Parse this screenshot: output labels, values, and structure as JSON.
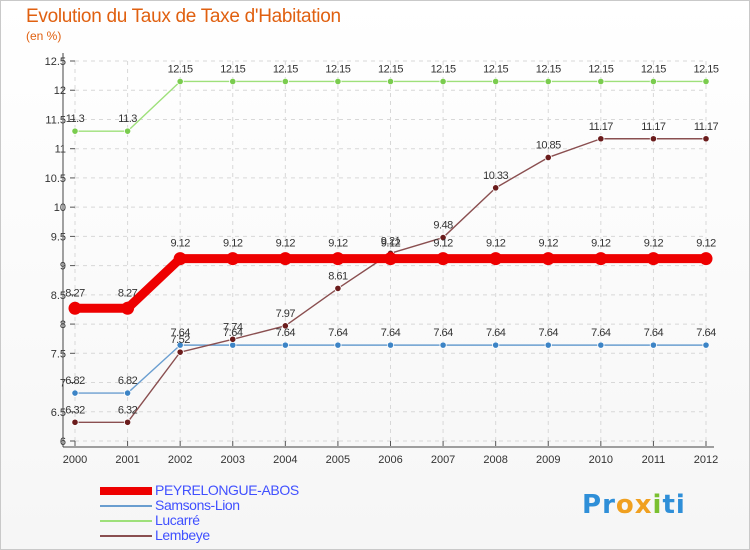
{
  "header": {
    "title": "Evolution du Taux de Taxe d'Habitation",
    "subtitle": "(en %)"
  },
  "chart_data": {
    "type": "line",
    "x": [
      "2000",
      "2001",
      "2002",
      "2003",
      "2004",
      "2005",
      "2006",
      "2007",
      "2008",
      "2009",
      "2010",
      "2011",
      "2012"
    ],
    "ylim": [
      6,
      12.5
    ],
    "yticks": [
      "6",
      "6.5",
      "7",
      "7.5",
      "8",
      "8.5",
      "9",
      "9.5",
      "10",
      "10.5",
      "11",
      "11.5",
      "12",
      "12.5"
    ],
    "ytick_values": [
      6,
      6.5,
      7,
      7.5,
      8,
      8.5,
      9,
      9.5,
      10,
      10.5,
      11,
      11.5,
      12,
      12.5
    ],
    "grid": true,
    "series": [
      {
        "name": "PEYRELONGUE-ABOS",
        "color": "#ee0000",
        "point_color": "#ee0000",
        "emphasis": true,
        "values": [
          8.27,
          8.27,
          9.12,
          9.12,
          9.12,
          9.12,
          9.12,
          9.12,
          9.12,
          9.12,
          9.12,
          9.12,
          9.12
        ],
        "labels": [
          "8.27",
          "8.27",
          "9.12",
          "9.12",
          "9.12",
          "9.12",
          "9.12",
          "9.12",
          "9.12",
          "9.12",
          "9.12",
          "9.12",
          "9.12"
        ]
      },
      {
        "name": "Samsons-Lion",
        "color": "#6a9ed0",
        "point_color": "#3c84c6",
        "emphasis": false,
        "values": [
          6.82,
          6.82,
          7.64,
          7.64,
          7.64,
          7.64,
          7.64,
          7.64,
          7.64,
          7.64,
          7.64,
          7.64,
          7.64
        ],
        "labels": [
          "6.82",
          "6.82",
          "7.64",
          "7.64",
          "7.64",
          "7.64",
          "7.64",
          "7.64",
          "7.64",
          "7.64",
          "7.64",
          "7.64",
          "7.64"
        ]
      },
      {
        "name": "Lucarré",
        "color": "#9ee07a",
        "point_color": "#7acc4e",
        "emphasis": false,
        "values": [
          11.3,
          11.3,
          12.15,
          12.15,
          12.15,
          12.15,
          12.15,
          12.15,
          12.15,
          12.15,
          12.15,
          12.15,
          12.15
        ],
        "labels": [
          "11.3",
          "11.3",
          "12.15",
          "12.15",
          "12.15",
          "12.15",
          "12.15",
          "12.15",
          "12.15",
          "12.15",
          "12.15",
          "12.15",
          "12.15"
        ]
      },
      {
        "name": "Lembeye",
        "color": "#8a4f50",
        "point_color": "#6b1c1c",
        "emphasis": false,
        "values": [
          6.32,
          6.32,
          7.52,
          7.74,
          7.97,
          8.61,
          9.21,
          9.48,
          10.33,
          10.85,
          11.17,
          11.17,
          11.17
        ],
        "labels": [
          "6.32",
          "6.32",
          "7.52",
          "7.74",
          "7.97",
          "8.61",
          "9.21",
          "9.48",
          "10.33",
          "10.85",
          "11.17",
          "11.17",
          "11.17"
        ]
      }
    ],
    "legend_placement": "bottom-left"
  },
  "legend": {
    "items": [
      {
        "label": "PEYRELONGUE-ABOS",
        "color": "#ee0000",
        "text_color": "#4050ff"
      },
      {
        "label": "Samsons-Lion",
        "color": "#6a9ed0",
        "text_color": "#4050ff"
      },
      {
        "label": "Lucarré",
        "color": "#9ee07a",
        "text_color": "#4050ff"
      },
      {
        "label": "Lembeye",
        "color": "#8a4f50",
        "text_color": "#4050ff"
      }
    ]
  },
  "logo": {
    "text": "Proxiti",
    "letters": [
      "P",
      "r",
      "o",
      "x",
      "i",
      "t",
      "i"
    ],
    "colors": [
      "#2f8fd8",
      "#2f8fd8",
      "#f0a020",
      "#f0a020",
      "#7ac030",
      "#2f8fd8",
      "#2f8fd8"
    ]
  }
}
